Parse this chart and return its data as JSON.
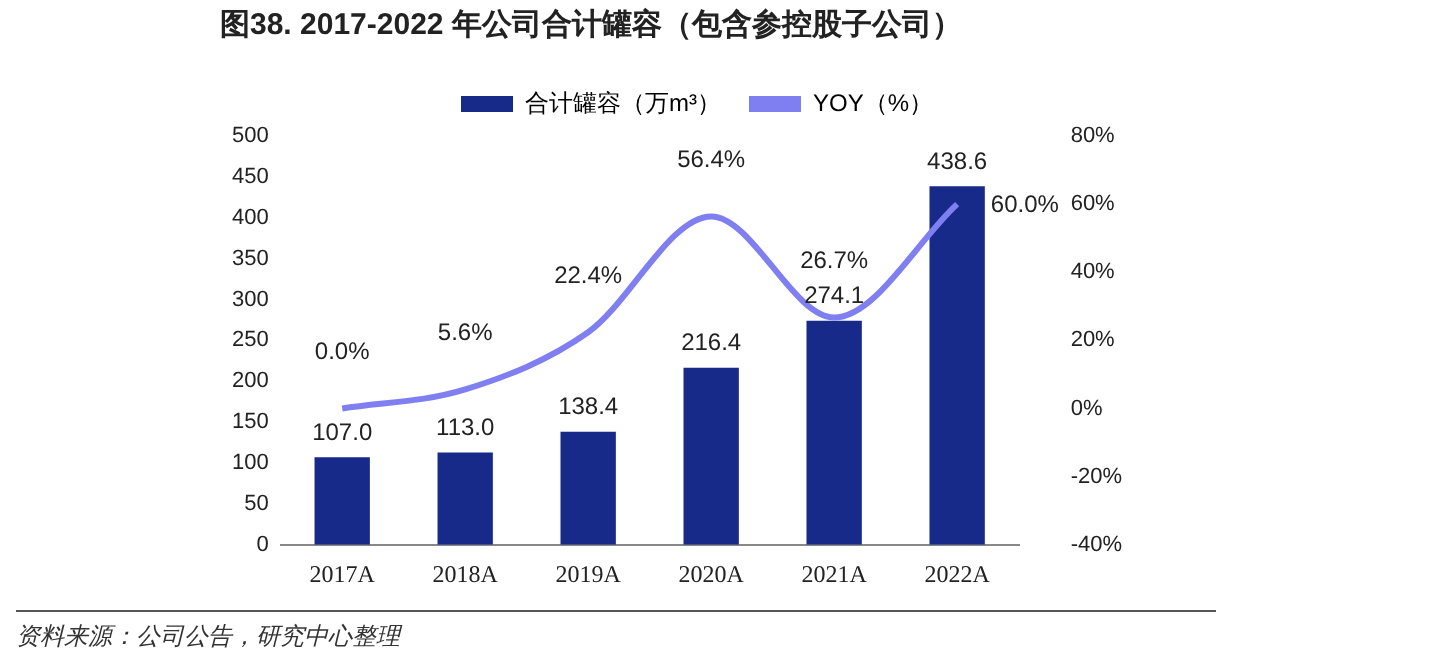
{
  "chart_data": {
    "type": "bar",
    "title": "图38. 2017-2022 年公司合计罐容（包含参控股子公司）",
    "categories": [
      "2017A",
      "2018A",
      "2019A",
      "2020A",
      "2021A",
      "2022A"
    ],
    "series": [
      {
        "name": "合计罐容（万m³）",
        "color": "#172a8a",
        "values": [
          107.0,
          113.0,
          138.4,
          216.4,
          274.1,
          438.6
        ],
        "value_labels": [
          "107.0",
          "113.0",
          "138.4",
          "216.4",
          "274.1",
          "438.6"
        ]
      },
      {
        "name": "YOY（%）",
        "type": "line",
        "axis": "y2",
        "color": "#7f7ff2",
        "values": [
          0.0,
          5.6,
          22.4,
          56.4,
          26.7,
          60.0
        ],
        "value_labels": [
          "0.0%",
          "5.6%",
          "22.4%",
          "56.4%",
          "26.7%",
          "60.0%"
        ]
      }
    ],
    "ylim": [
      0,
      500
    ],
    "yticks": [
      0,
      50,
      100,
      150,
      200,
      250,
      300,
      350,
      400,
      450,
      500
    ],
    "y2lim": [
      -40,
      80
    ],
    "y2ticks": [
      {
        "value": -40,
        "label": "-40%"
      },
      {
        "value": -20,
        "label": "-20%"
      },
      {
        "value": 0,
        "label": "0%"
      },
      {
        "value": 20,
        "label": "20%"
      },
      {
        "value": 40,
        "label": "40%"
      },
      {
        "value": 60,
        "label": "60%"
      },
      {
        "value": 80,
        "label": "80%"
      }
    ],
    "grid": false,
    "legend": "top",
    "marker": "none",
    "line_style": "solid",
    "annotations": [
      "资料来源：公司公告，研究中心整理"
    ]
  }
}
